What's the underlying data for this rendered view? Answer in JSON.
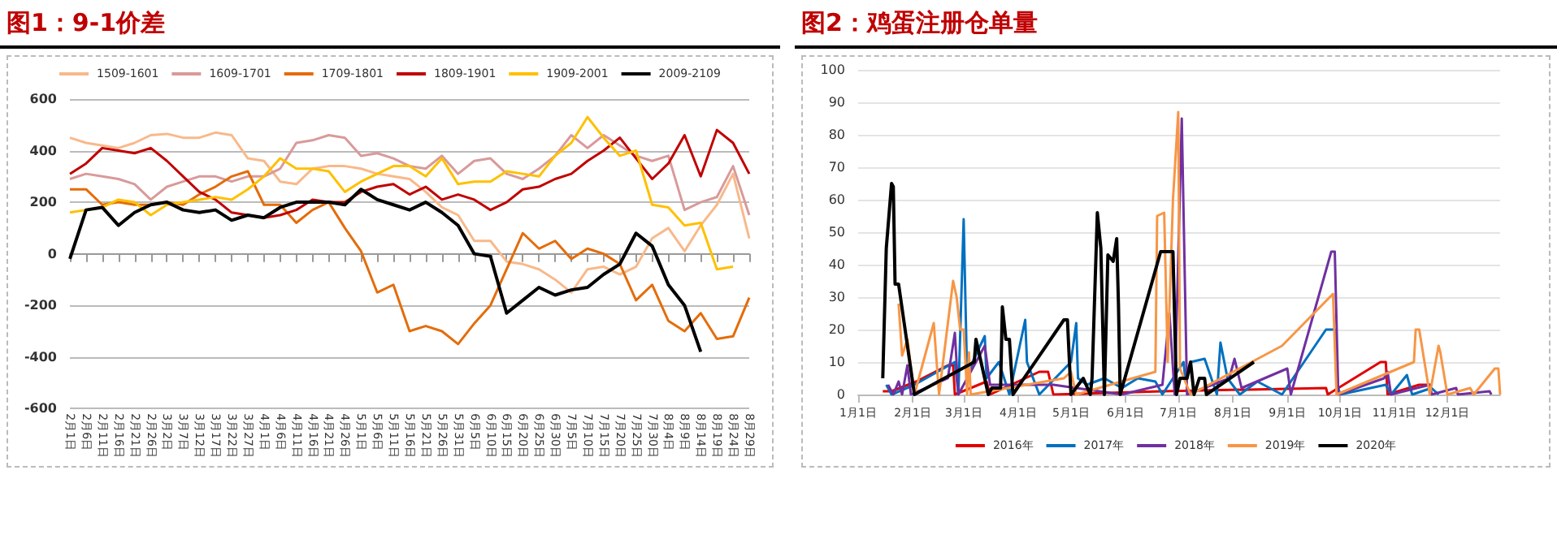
{
  "chart_data": [
    {
      "type": "line",
      "title": "图1：9-1价差",
      "categories": [
        "2月1日",
        "2月6日",
        "2月11日",
        "2月16日",
        "2月21日",
        "2月26日",
        "3月2日",
        "3月7日",
        "3月12日",
        "3月17日",
        "3月22日",
        "3月27日",
        "4月1日",
        "4月6日",
        "4月11日",
        "4月16日",
        "4月21日",
        "4月26日",
        "5月1日",
        "5月6日",
        "5月11日",
        "5月16日",
        "5月21日",
        "5月26日",
        "5月31日",
        "6月5日",
        "6月10日",
        "6月15日",
        "6月20日",
        "6月25日",
        "6月30日",
        "7月5日",
        "7月10日",
        "7月15日",
        "7月20日",
        "7月25日",
        "7月30日",
        "8月4日",
        "8月9日",
        "8月14日",
        "8月19日",
        "8月24日",
        "8月29日"
      ],
      "series": [
        {
          "name": "1509-1601",
          "color": "#f8b98b",
          "values": [
            450,
            430,
            420,
            410,
            430,
            460,
            465,
            450,
            450,
            470,
            460,
            370,
            360,
            280,
            270,
            330,
            340,
            340,
            330,
            310,
            300,
            290,
            240,
            180,
            150,
            50,
            50,
            -30,
            -40,
            -60,
            -100,
            -150,
            -60,
            -50,
            -80,
            -50,
            60,
            100,
            10,
            110,
            190,
            310,
            60
          ]
        },
        {
          "name": "1609-1701",
          "color": "#d99a9a",
          "values": [
            290,
            310,
            300,
            290,
            270,
            210,
            260,
            280,
            300,
            300,
            280,
            300,
            300,
            330,
            430,
            440,
            460,
            450,
            380,
            390,
            370,
            340,
            330,
            380,
            310,
            360,
            370,
            310,
            290,
            330,
            380,
            460,
            410,
            460,
            420,
            380,
            360,
            380,
            170,
            200,
            220,
            340,
            150
          ]
        },
        {
          "name": "1709-1801",
          "color": "#e46c0a",
          "values": [
            250,
            250,
            190,
            200,
            190,
            190,
            200,
            190,
            230,
            260,
            300,
            320,
            190,
            190,
            120,
            170,
            200,
            100,
            10,
            -150,
            -120,
            -300,
            -280,
            -300,
            -350,
            -270,
            -200,
            -60,
            80,
            20,
            50,
            -20,
            20,
            0,
            -40,
            -180,
            -120,
            -260,
            -300,
            -230,
            -330,
            -320,
            -170
          ]
        },
        {
          "name": "1809-1901",
          "color": "#c00000",
          "values": [
            310,
            350,
            410,
            400,
            390,
            410,
            360,
            300,
            240,
            210,
            160,
            150,
            140,
            150,
            170,
            210,
            200,
            200,
            240,
            260,
            270,
            230,
            260,
            210,
            230,
            210,
            170,
            200,
            250,
            260,
            290,
            310,
            360,
            400,
            450,
            370,
            290,
            350,
            460,
            300,
            480,
            430,
            310
          ]
        },
        {
          "name": "1909-2001",
          "color": "#ffc000",
          "values": [
            160,
            170,
            180,
            210,
            200,
            150,
            190,
            200,
            210,
            220,
            210,
            250,
            300,
            370,
            330,
            330,
            320,
            240,
            280,
            310,
            340,
            340,
            300,
            370,
            270,
            280,
            280,
            320,
            310,
            300,
            380,
            430,
            530,
            450,
            380,
            400,
            190,
            180,
            110,
            120,
            -60,
            -50,
            null
          ]
        },
        {
          "name": "2009-2109",
          "color": "#000000",
          "values": [
            -20,
            170,
            180,
            110,
            160,
            190,
            200,
            170,
            160,
            170,
            130,
            150,
            140,
            180,
            200,
            200,
            200,
            190,
            250,
            210,
            190,
            170,
            200,
            160,
            110,
            0,
            -10,
            -230,
            -180,
            -130,
            -160,
            -140,
            -130,
            -80,
            -40,
            80,
            30,
            -120,
            -200,
            -380,
            null,
            null,
            null
          ]
        }
      ],
      "ylim": [
        -600,
        600
      ],
      "yticks": [
        -600,
        -400,
        -200,
        0,
        200,
        400,
        600
      ],
      "grid": "y",
      "legend": "top"
    },
    {
      "type": "line",
      "title": "图2：鸡蛋注册仓单量",
      "xlim": [
        "--01-01",
        "--12-31"
      ],
      "xticks": [
        {
          "value": "--01-01",
          "label": "1月1日"
        },
        {
          "value": "--02-01",
          "label": "2月1日"
        },
        {
          "value": "--03-01",
          "label": "3月1日"
        },
        {
          "value": "--04-01",
          "label": "4月1日"
        },
        {
          "value": "--05-01",
          "label": "5月1日"
        },
        {
          "value": "--06-01",
          "label": "6月1日"
        },
        {
          "value": "--07-01",
          "label": "7月1日"
        },
        {
          "value": "--08-01",
          "label": "8月1日"
        },
        {
          "value": "--09-01",
          "label": "9月1日"
        },
        {
          "value": "--10-01",
          "label": "10月1日"
        },
        {
          "value": "--11-01",
          "label": "11月1日"
        },
        {
          "value": "--12-01",
          "label": "12月1日"
        }
      ],
      "ylim": [
        0,
        100
      ],
      "yticks": [
        0,
        10,
        20,
        30,
        40,
        50,
        60,
        70,
        80,
        90,
        100
      ],
      "grid": "y",
      "legend": "bottom",
      "series": [
        {
          "name": "2016年",
          "color": "#e00000",
          "x": [
            "--01-15",
            "--01-20",
            "--02-03",
            "--02-21",
            "--02-24",
            "--02-25",
            "--03-14",
            "--03-16",
            "--04-13",
            "--04-18",
            "--04-21",
            "--06-22",
            "--09-23",
            "--09-24",
            "--10-24",
            "--10-27",
            "--10-28",
            "--11-15",
            "--11-21",
            "--11-22"
          ],
          "values": [
            1,
            1,
            4,
            9,
            9,
            0,
            4,
            0,
            7,
            7,
            0,
            1,
            2,
            0,
            10,
            10,
            0,
            3,
            3,
            0
          ]
        },
        {
          "name": "2017年",
          "color": "#0070c0",
          "x": [
            "--01-17",
            "--01-20",
            "--02-02",
            "--02-25",
            "--02-27",
            "--03-01",
            "--03-03",
            "--03-06",
            "--03-13",
            "--03-14",
            "--03-21",
            "--03-27",
            "--04-05",
            "--04-06",
            "--04-13",
            "--05-01",
            "--05-04",
            "--05-05",
            "--05-10",
            "--05-20",
            "--05-30",
            "--06-08",
            "--06-18",
            "--06-22",
            "--07-04",
            "--07-05",
            "--07-08",
            "--07-16",
            "--07-23",
            "--07-25",
            "--07-29",
            "--08-05",
            "--08-15",
            "--08-29",
            "--09-23",
            "--09-28",
            "--09-29",
            "--10-01",
            "--10-27",
            "--10-30",
            "--11-08",
            "--11-11",
            "--11-22",
            "--11-26"
          ],
          "values": [
            3,
            0,
            3,
            10,
            0,
            54,
            4,
            10,
            18,
            5,
            10,
            0,
            23,
            10,
            0,
            10,
            22,
            5,
            3,
            5,
            2,
            5,
            4,
            0,
            10,
            5,
            10,
            11,
            0,
            16,
            5,
            0,
            4,
            0,
            20,
            20,
            4,
            0,
            3,
            0,
            6,
            0,
            2,
            0
          ]
        },
        {
          "name": "2018年",
          "color": "#7030a0",
          "x": [
            "--01-18",
            "--01-21",
            "--01-24",
            "--01-26",
            "--01-29",
            "--01-31",
            "--02-21",
            "--02-25",
            "--02-27",
            "--03-13",
            "--03-16",
            "--04-21",
            "--05-30",
            "--06-22",
            "--06-26",
            "--06-28",
            "--06-29",
            "--07-03",
            "--07-06",
            "--07-30",
            "--08-02",
            "--08-06",
            "--09-01",
            "--09-03",
            "--09-26",
            "--09-28",
            "--09-30",
            "--10-26",
            "--10-28",
            "--10-30",
            "--11-21",
            "--11-22",
            "--12-06",
            "--12-07",
            "--12-25",
            "--12-26"
          ],
          "values": [
            3,
            0,
            4,
            0,
            9,
            0,
            5,
            19,
            0,
            15,
            3,
            3,
            0,
            3,
            25,
            8,
            0,
            85,
            0,
            5,
            11,
            2,
            8,
            0,
            44,
            44,
            0,
            5,
            7,
            0,
            3,
            0,
            2,
            0,
            1,
            0
          ]
        },
        {
          "name": "2019年",
          "color": "#f79646",
          "x": [
            "--01-24",
            "--01-26",
            "--01-29",
            "--02-02",
            "--02-13",
            "--02-16",
            "--02-24",
            "--02-26",
            "--02-28",
            "--03-01",
            "--03-03",
            "--03-04",
            "--03-05",
            "--04-27",
            "--05-01",
            "--05-04",
            "--06-18",
            "--06-19",
            "--06-23",
            "--06-25",
            "--06-28",
            "--07-01",
            "--07-02",
            "--07-08",
            "--08-29",
            "--09-27",
            "--09-29",
            "--11-12",
            "--11-13",
            "--11-15",
            "--11-18",
            "--11-21",
            "--11-26",
            "--11-27",
            "--12-01",
            "--12-14",
            "--12-16",
            "--12-28",
            "--12-30",
            "--12-31"
          ],
          "values": [
            28,
            12,
            17,
            0,
            22,
            0,
            35,
            30,
            20,
            20,
            0,
            13,
            0,
            5,
            7,
            0,
            7,
            55,
            56,
            10,
            60,
            87,
            8,
            0,
            15,
            31,
            0,
            10,
            20,
            20,
            10,
            0,
            15,
            13,
            0,
            2,
            0,
            8,
            8,
            0
          ]
        },
        {
          "name": "2020年",
          "color": "#000000",
          "x": [
            "--01-15",
            "--01-17",
            "--01-20",
            "--01-21",
            "--01-22",
            "--01-24",
            "--02-02",
            "--03-07",
            "--03-08",
            "--03-15",
            "--03-17",
            "--03-22",
            "--03-23",
            "--03-25",
            "--03-27",
            "--03-29",
            "--04-27",
            "--04-29",
            "--05-01",
            "--05-08",
            "--05-12",
            "--05-13",
            "--05-16",
            "--05-18",
            "--05-20",
            "--05-22",
            "--05-25",
            "--05-27",
            "--05-28",
            "--05-29",
            "--06-21",
            "--06-28",
            "--06-30",
            "--07-02",
            "--07-06",
            "--07-08",
            "--07-10",
            "--07-13",
            "--07-16",
            "--07-17",
            "--08-13"
          ],
          "values": [
            5,
            45,
            65,
            64,
            34,
            34,
            0,
            10,
            17,
            0,
            2,
            2,
            27,
            17,
            17,
            0,
            23,
            23,
            0,
            5,
            0,
            5,
            56,
            45,
            0,
            43,
            41,
            48,
            28,
            0,
            44,
            44,
            0,
            5,
            5,
            10,
            0,
            5,
            5,
            0,
            10
          ]
        }
      ]
    }
  ]
}
